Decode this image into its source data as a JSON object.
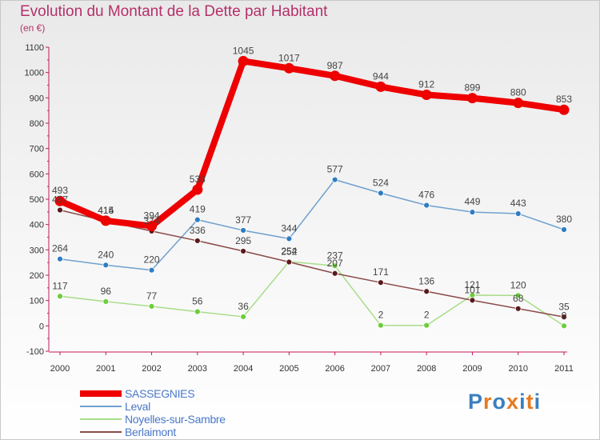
{
  "header": {
    "title": "Evolution du Montant de la Dette par Habitant",
    "unit": "(en €)"
  },
  "brand": {
    "text": "Proxiti",
    "letter_colors": [
      "#3a7fc0",
      "#e67a1f",
      "#3a7fc0",
      "#e67a1f",
      "#3a7fc0",
      "#e67a1f",
      "#3a7fc0"
    ]
  },
  "chart_data": {
    "type": "line",
    "title": "Evolution du Montant de la Dette par Habitant",
    "ylabel": "(en €)",
    "xlabel": "",
    "ylim": [
      -100,
      1100
    ],
    "yticks": [
      -100,
      0,
      100,
      200,
      300,
      400,
      500,
      600,
      700,
      800,
      900,
      1000,
      1100
    ],
    "grid": false,
    "legend_position": "bottom-left",
    "categories": [
      "2000",
      "2001",
      "2002",
      "2003",
      "2004",
      "2005",
      "2006",
      "2007",
      "2008",
      "2009",
      "2010",
      "2011"
    ],
    "series": [
      {
        "name": "SASSEGNIES",
        "values": [
          493,
          415,
          394,
          538,
          1045,
          1017,
          987,
          944,
          912,
          899,
          880,
          853
        ],
        "color": "#ee0000",
        "marker": "#ee0000",
        "label_color": "#444444",
        "emphasis": true
      },
      {
        "name": "Leval",
        "values": [
          264,
          240,
          220,
          419,
          377,
          344,
          577,
          524,
          476,
          449,
          443,
          380
        ],
        "color": "#6fa1cf",
        "marker": "#2e7dc2",
        "label_color": "#444444",
        "emphasis": false
      },
      {
        "name": "Noyelles-sur-Sambre",
        "values": [
          117,
          96,
          77,
          56,
          36,
          254,
          237,
          2,
          2,
          121,
          120,
          0
        ],
        "color": "#a9dd8a",
        "marker": "#6ccd3a",
        "label_color": "#444444",
        "emphasis": false
      },
      {
        "name": "Berlaimont",
        "values": [
          457,
          414,
          374,
          336,
          295,
          252,
          207,
          171,
          136,
          101,
          68,
          35
        ],
        "color": "#8a4a4a",
        "marker": "#5a1a1a",
        "label_color": "#444444",
        "emphasis": false
      }
    ]
  }
}
